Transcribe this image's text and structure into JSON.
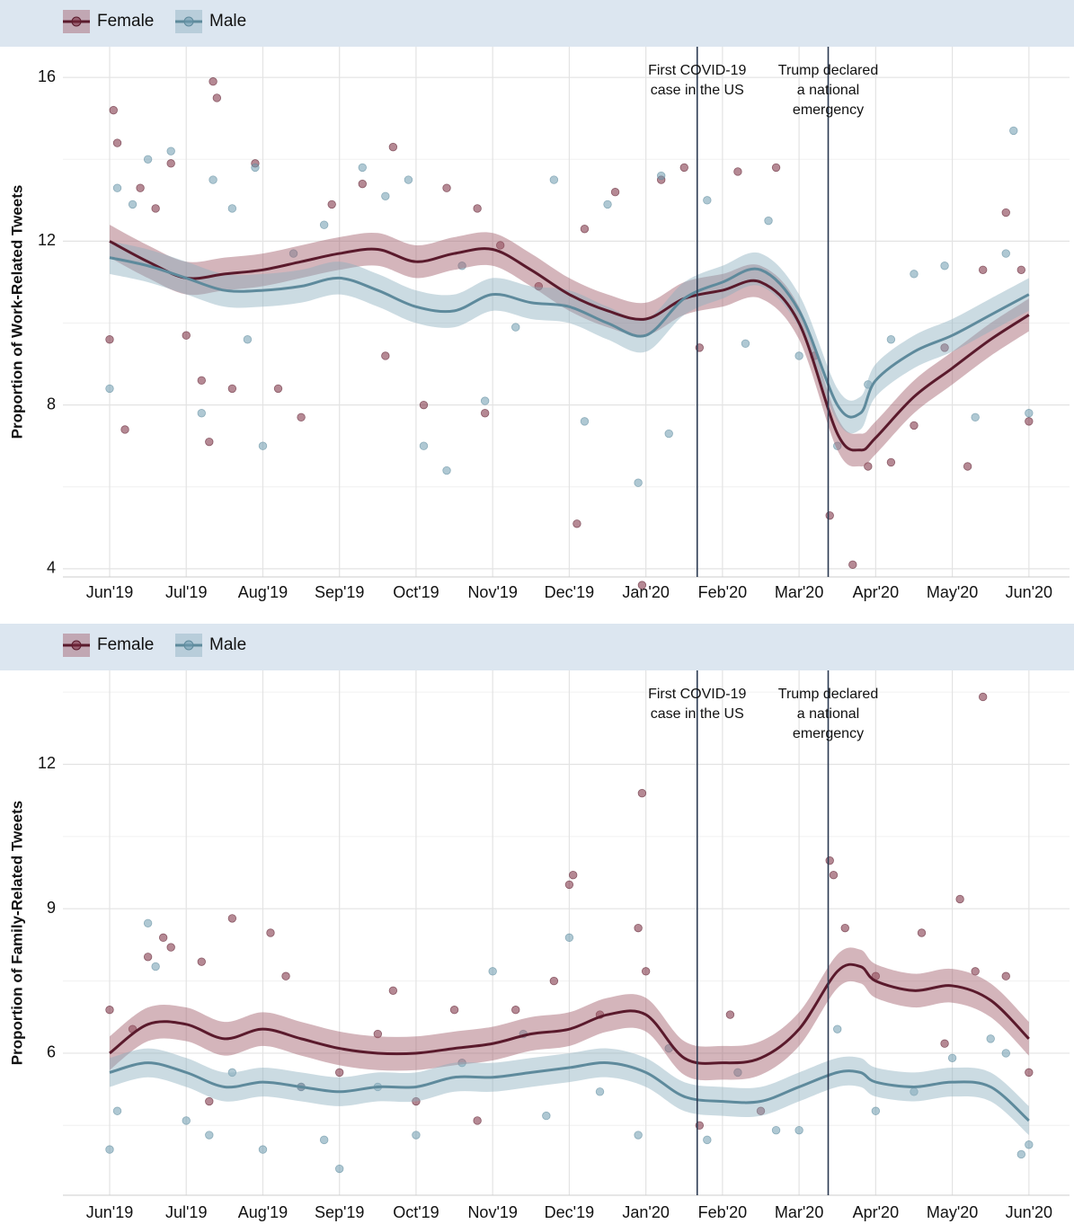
{
  "chart_data": [
    {
      "type": "line",
      "ylabel": "Proportion of Work-Related Tweets",
      "legend": "top",
      "grid": true,
      "xlim": [
        -0.61,
        12.53
      ],
      "ylim": [
        3.8,
        16.75
      ],
      "xticks": [
        {
          "value": 0,
          "label": "Jun'19"
        },
        {
          "value": 1,
          "label": "Jul'19"
        },
        {
          "value": 2,
          "label": "Aug'19"
        },
        {
          "value": 3,
          "label": "Sep'19"
        },
        {
          "value": 4,
          "label": "Oct'19"
        },
        {
          "value": 5,
          "label": "Nov'19"
        },
        {
          "value": 6,
          "label": "Dec'19"
        },
        {
          "value": 7,
          "label": "Jan'20"
        },
        {
          "value": 8,
          "label": "Feb'20"
        },
        {
          "value": 9,
          "label": "Mar'20"
        },
        {
          "value": 10,
          "label": "Apr'20"
        },
        {
          "value": 11,
          "label": "May'20"
        },
        {
          "value": 12,
          "label": "Jun'20"
        }
      ],
      "yticks": [
        4,
        8,
        12,
        16
      ],
      "minor_yticks": [
        6,
        10,
        14
      ],
      "annotations": [
        {
          "x": 7.67,
          "lines": [
            "First COVID-19",
            "case in the US"
          ]
        },
        {
          "x": 9.38,
          "lines": [
            "Trump declared",
            "a national",
            "emergency"
          ]
        }
      ],
      "x": [
        0,
        0.5,
        1,
        1.5,
        2,
        2.5,
        3,
        3.5,
        4,
        4.5,
        5,
        5.5,
        6,
        6.5,
        7,
        7.5,
        8,
        8.5,
        9,
        9.5,
        9.8,
        10,
        10.5,
        11,
        11.5,
        12
      ],
      "series": [
        {
          "name": "Female",
          "color": "#5a1a2c",
          "ci_halfwidth": 0.4,
          "values": [
            12.0,
            11.5,
            11.1,
            11.2,
            11.3,
            11.5,
            11.7,
            11.8,
            11.5,
            11.7,
            11.8,
            11.3,
            10.7,
            10.3,
            10.1,
            10.6,
            10.8,
            11.0,
            10.0,
            7.3,
            6.9,
            7.2,
            8.2,
            8.9,
            9.6,
            10.2
          ],
          "scatter_x": [
            0,
            0.05,
            0.1,
            0.2,
            0.4,
            0.6,
            0.8,
            1,
            1.2,
            1.3,
            1.35,
            1.4,
            1.6,
            1.9,
            2.2,
            2.5,
            2.9,
            3.3,
            3.6,
            3.7,
            4.1,
            4.4,
            4.8,
            4.9,
            5.1,
            5.6,
            6.1,
            6.2,
            6.6,
            6.95,
            7.2,
            7.5,
            7.7,
            8.2,
            8.7,
            9.2,
            9.4,
            9.7,
            9.9,
            10.2,
            10.5,
            10.9,
            11.2,
            11.4,
            11.7,
            11.9,
            12.0
          ],
          "scatter_y": [
            9.6,
            15.2,
            14.4,
            7.4,
            13.3,
            12.8,
            13.9,
            9.7,
            8.6,
            7.1,
            15.9,
            15.5,
            8.4,
            13.9,
            8.4,
            7.7,
            12.9,
            13.4,
            9.2,
            14.3,
            8.0,
            13.3,
            12.8,
            7.8,
            11.9,
            10.9,
            5.1,
            12.3,
            13.2,
            3.6,
            13.5,
            13.8,
            9.4,
            13.7,
            13.8,
            9.2,
            5.3,
            4.1,
            6.5,
            6.6,
            7.5,
            9.4,
            6.5,
            11.3,
            12.7,
            11.3,
            7.6
          ]
        },
        {
          "name": "Male",
          "color": "#5e8a9c",
          "ci_halfwidth": 0.4,
          "values": [
            11.6,
            11.4,
            11.1,
            10.8,
            10.8,
            10.9,
            11.1,
            10.8,
            10.4,
            10.3,
            10.7,
            10.5,
            10.4,
            10.0,
            9.7,
            10.6,
            11.0,
            11.3,
            10.3,
            8.0,
            7.8,
            8.6,
            9.3,
            9.7,
            10.2,
            10.7
          ],
          "scatter_x": [
            0,
            0.1,
            0.3,
            0.5,
            0.8,
            1.2,
            1.35,
            1.6,
            1.8,
            1.9,
            2.0,
            2.4,
            2.8,
            3.3,
            3.6,
            3.9,
            4.1,
            4.4,
            4.6,
            4.9,
            5.3,
            5.8,
            6.2,
            6.5,
            6.9,
            7.2,
            7.3,
            7.8,
            8.3,
            8.6,
            9.0,
            9.5,
            9.9,
            10.2,
            10.5,
            10.9,
            11.3,
            11.7,
            11.8,
            12.0
          ],
          "scatter_y": [
            8.4,
            13.3,
            12.9,
            14.0,
            14.2,
            7.8,
            13.5,
            12.8,
            9.6,
            13.8,
            7.0,
            11.7,
            12.4,
            13.8,
            13.1,
            13.5,
            7.0,
            6.4,
            11.4,
            8.1,
            9.9,
            13.5,
            7.6,
            12.9,
            6.1,
            13.6,
            7.3,
            13.0,
            9.5,
            12.5,
            9.2,
            7.0,
            8.5,
            9.6,
            11.2,
            11.4,
            7.7,
            11.7,
            14.7,
            7.8
          ]
        }
      ]
    },
    {
      "type": "line",
      "ylabel": "Proportion of Family-Related Tweets",
      "legend": "top",
      "grid": true,
      "xlim": [
        -0.61,
        12.53
      ],
      "ylim": [
        3.05,
        13.95
      ],
      "xticks": [
        {
          "value": 0,
          "label": "Jun'19"
        },
        {
          "value": 1,
          "label": "Jul'19"
        },
        {
          "value": 2,
          "label": "Aug'19"
        },
        {
          "value": 3,
          "label": "Sep'19"
        },
        {
          "value": 4,
          "label": "Oct'19"
        },
        {
          "value": 5,
          "label": "Nov'19"
        },
        {
          "value": 6,
          "label": "Dec'19"
        },
        {
          "value": 7,
          "label": "Jan'20"
        },
        {
          "value": 8,
          "label": "Feb'20"
        },
        {
          "value": 9,
          "label": "Mar'20"
        },
        {
          "value": 10,
          "label": "Apr'20"
        },
        {
          "value": 11,
          "label": "May'20"
        },
        {
          "value": 12,
          "label": "Jun'20"
        }
      ],
      "yticks": [
        6,
        9,
        12
      ],
      "minor_yticks": [
        4.5,
        7.5,
        10.5,
        13.5
      ],
      "annotations": [
        {
          "x": 7.67,
          "lines": [
            "First COVID-19",
            "case in the US"
          ]
        },
        {
          "x": 9.38,
          "lines": [
            "Trump declared",
            "a national",
            "emergency"
          ]
        }
      ],
      "x": [
        0,
        0.5,
        1,
        1.5,
        2,
        2.5,
        3,
        3.5,
        4,
        4.5,
        5,
        5.5,
        6,
        6.5,
        7,
        7.5,
        8,
        8.5,
        9,
        9.5,
        9.8,
        10,
        10.5,
        11,
        11.5,
        12
      ],
      "series": [
        {
          "name": "Female",
          "color": "#5a1a2c",
          "ci_halfwidth": 0.35,
          "values": [
            6.0,
            6.6,
            6.6,
            6.3,
            6.5,
            6.3,
            6.1,
            6.0,
            6.0,
            6.1,
            6.2,
            6.4,
            6.5,
            6.8,
            6.8,
            5.9,
            5.8,
            5.9,
            6.5,
            7.7,
            7.8,
            7.5,
            7.3,
            7.4,
            7.1,
            6.3
          ],
          "scatter_x": [
            0,
            0.3,
            0.5,
            0.7,
            0.8,
            1.2,
            1.3,
            1.6,
            2.1,
            2.3,
            2.5,
            3.0,
            3.5,
            3.7,
            4.0,
            4.5,
            4.8,
            5.3,
            5.8,
            6.0,
            6.05,
            6.4,
            6.9,
            6.95,
            7.0,
            7.7,
            8.1,
            8.5,
            9.4,
            9.45,
            9.6,
            10.0,
            10.6,
            10.9,
            11.1,
            11.3,
            11.4,
            11.7,
            12.0
          ],
          "scatter_y": [
            6.9,
            6.5,
            8.0,
            8.4,
            8.2,
            7.9,
            5.0,
            8.8,
            8.5,
            7.6,
            5.3,
            5.6,
            6.4,
            7.3,
            5.0,
            6.9,
            4.6,
            6.9,
            7.5,
            9.5,
            9.7,
            6.8,
            8.6,
            11.4,
            7.7,
            4.5,
            6.8,
            4.8,
            10.0,
            9.7,
            8.6,
            7.6,
            8.5,
            6.2,
            9.2,
            7.7,
            13.4,
            7.6,
            5.6
          ]
        },
        {
          "name": "Male",
          "color": "#5e8a9c",
          "ci_halfwidth": 0.3,
          "values": [
            5.6,
            5.8,
            5.6,
            5.3,
            5.4,
            5.3,
            5.2,
            5.3,
            5.3,
            5.5,
            5.5,
            5.6,
            5.7,
            5.8,
            5.6,
            5.1,
            5.0,
            5.0,
            5.3,
            5.6,
            5.6,
            5.4,
            5.3,
            5.4,
            5.3,
            4.6
          ],
          "scatter_x": [
            0,
            0.1,
            0.5,
            0.6,
            1.0,
            1.3,
            1.6,
            2.0,
            2.5,
            2.8,
            3.0,
            3.5,
            4.0,
            4.6,
            5.0,
            5.4,
            5.7,
            6.0,
            6.4,
            6.9,
            7.3,
            7.8,
            8.2,
            8.7,
            9.0,
            9.5,
            10.0,
            10.5,
            11.0,
            11.5,
            11.7,
            11.9,
            12.0
          ],
          "scatter_y": [
            4.0,
            4.8,
            8.7,
            7.8,
            4.6,
            4.3,
            5.6,
            4.0,
            5.3,
            4.2,
            3.6,
            5.3,
            4.3,
            5.8,
            7.7,
            6.4,
            4.7,
            8.4,
            5.2,
            4.3,
            6.1,
            4.2,
            5.6,
            4.4,
            4.4,
            6.5,
            4.8,
            5.2,
            5.9,
            6.3,
            6.0,
            3.9,
            4.1
          ]
        }
      ]
    }
  ]
}
